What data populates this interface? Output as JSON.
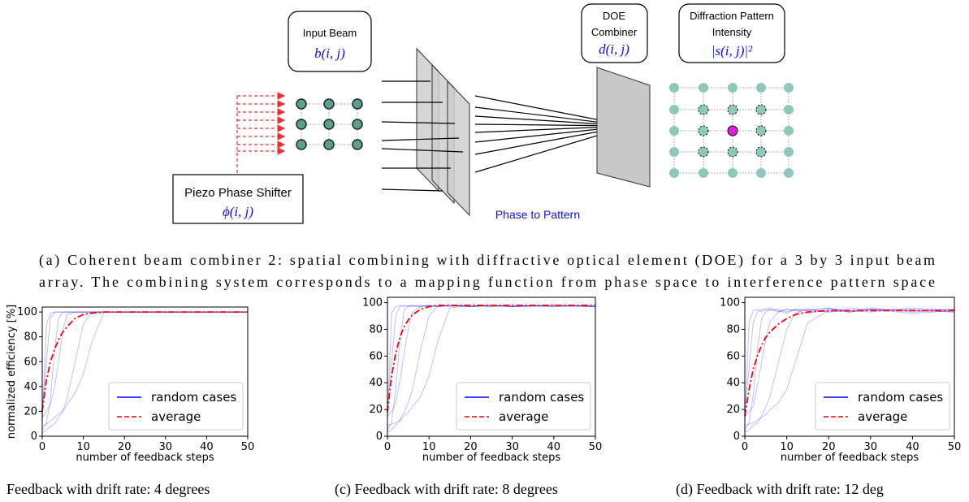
{
  "diagram": {
    "input_beam": {
      "label": "Input Beam",
      "formula": "b(i, j)"
    },
    "doe": {
      "label_1": "DOE",
      "label_2": "Combiner",
      "formula": "d(i, j)"
    },
    "pattern": {
      "label_1": "Diffraction Pattern",
      "label_2": "Intensity",
      "formula": "|s(i, j)|²"
    },
    "piezo": {
      "label": "Piezo Phase Shifter",
      "formula": "ϕ(i, j)"
    },
    "arrow_label": "Phase to Pattern",
    "caption_1": "(a) Coherent beam combiner 2: spatial combining with diffractive optical element (DOE) for a 3 by 3 input beam",
    "caption_2": "array. The combining system corresponds to a mapping function from phase space to interference pattern space"
  },
  "chart_data": [
    {
      "type": "line",
      "caption": "Feedback with drift rate: 4 degrees",
      "x_label": "number of feedback steps",
      "y_label": "normalized efficiency [%]",
      "x": [
        0,
        1,
        2,
        3,
        4,
        5,
        6,
        8,
        10,
        12,
        15,
        20,
        25,
        30,
        40,
        50
      ],
      "xlim": [
        0,
        50
      ],
      "xticks": [
        0,
        10,
        20,
        30,
        40,
        50
      ],
      "ylim": [
        0,
        104
      ],
      "yticks": [
        0,
        20,
        40,
        60,
        80,
        100
      ],
      "legend": "lower right",
      "series": [
        {
          "name": "random cases",
          "color": "#0000ff",
          "runs": [
            [
              10,
              90,
              99,
              100,
              100,
              100,
              100,
              100,
              100,
              100,
              100,
              100,
              100,
              100,
              100,
              100
            ],
            [
              20,
              60,
              95,
              100,
              100,
              100,
              100,
              100,
              100,
              100,
              100,
              100,
              100,
              100,
              100,
              100
            ],
            [
              5,
              10,
              30,
              70,
              95,
              100,
              100,
              100,
              100,
              100,
              100,
              100,
              100,
              100,
              100,
              100
            ],
            [
              15,
              20,
              25,
              40,
              60,
              85,
              98,
              100,
              100,
              100,
              100,
              100,
              100,
              100,
              100,
              100
            ],
            [
              3,
              5,
              8,
              10,
              15,
              20,
              30,
              60,
              90,
              100,
              100,
              100,
              100,
              100,
              100,
              100
            ],
            [
              8,
              10,
              12,
              15,
              18,
              20,
              25,
              35,
              50,
              75,
              100,
              100,
              100,
              100,
              100,
              100
            ]
          ]
        },
        {
          "name": "average",
          "color": "#ff0000",
          "values": [
            20,
            45,
            60,
            70,
            78,
            84,
            88,
            95,
            98,
            99,
            100,
            100,
            100,
            100,
            100,
            100
          ]
        }
      ]
    },
    {
      "type": "line",
      "caption": "(c) Feedback with drift rate: 8 degrees",
      "x_label": "number of feedback steps",
      "x": [
        0,
        1,
        2,
        3,
        4,
        5,
        6,
        8,
        10,
        12,
        15,
        20,
        25,
        30,
        40,
        50
      ],
      "xlim": [
        0,
        50
      ],
      "xticks": [
        0,
        10,
        20,
        30,
        40,
        50
      ],
      "ylim": [
        0,
        104
      ],
      "yticks": [
        0,
        20,
        40,
        60,
        80,
        100
      ],
      "legend": "lower right",
      "series": [
        {
          "name": "random cases",
          "color": "#0000ff",
          "runs": [
            [
              10,
              92,
              97,
              98,
              97,
              98,
              97,
              98,
              97,
              98,
              97,
              98,
              97,
              98,
              97,
              98
            ],
            [
              20,
              55,
              90,
              97,
              98,
              97,
              98,
              97,
              98,
              97,
              98,
              97,
              98,
              97,
              98,
              97
            ],
            [
              5,
              10,
              35,
              72,
              94,
              97,
              98,
              97,
              98,
              97,
              98,
              97,
              98,
              97,
              98,
              97
            ],
            [
              15,
              18,
              25,
              42,
              62,
              80,
              93,
              97,
              98,
              97,
              98,
              97,
              98,
              97,
              98,
              97
            ],
            [
              3,
              5,
              8,
              12,
              18,
              25,
              35,
              65,
              90,
              97,
              98,
              97,
              98,
              97,
              98,
              97
            ],
            [
              8,
              9,
              10,
              12,
              15,
              18,
              22,
              30,
              45,
              70,
              96,
              98,
              97,
              98,
              97,
              98
            ]
          ]
        },
        {
          "name": "average",
          "color": "#ff0000",
          "values": [
            18,
            45,
            62,
            74,
            82,
            87,
            91,
            95,
            97,
            98,
            98,
            98,
            98,
            98,
            98,
            98
          ]
        }
      ]
    },
    {
      "type": "line",
      "caption": "(d) Feedback with drift rate: 12 deg",
      "x_label": "number of feedback steps",
      "x": [
        0,
        1,
        2,
        3,
        4,
        5,
        6,
        8,
        10,
        12,
        15,
        20,
        25,
        30,
        40,
        50
      ],
      "xlim": [
        0,
        50
      ],
      "xticks": [
        0,
        10,
        20,
        30,
        40,
        50
      ],
      "ylim": [
        0,
        104
      ],
      "yticks": [
        0,
        20,
        40,
        60,
        80,
        100
      ],
      "legend": "lower right",
      "series": [
        {
          "name": "random cases",
          "color": "#0000ff",
          "runs": [
            [
              10,
              85,
              94,
              95,
              93,
              96,
              94,
              95,
              93,
              95,
              94,
              96,
              93,
              95,
              94,
              95
            ],
            [
              20,
              50,
              85,
              93,
              95,
              94,
              96,
              93,
              95,
              94,
              95,
              93,
              96,
              94,
              95,
              93
            ],
            [
              5,
              10,
              30,
              65,
              88,
              93,
              95,
              94,
              92,
              95,
              94,
              96,
              93,
              95,
              92,
              94
            ],
            [
              15,
              18,
              22,
              38,
              55,
              72,
              86,
              93,
              95,
              94,
              92,
              95,
              94,
              93,
              96,
              94
            ],
            [
              3,
              5,
              8,
              10,
              15,
              22,
              30,
              55,
              80,
              92,
              95,
              93,
              94,
              96,
              93,
              95
            ],
            [
              8,
              9,
              10,
              12,
              14,
              16,
              20,
              25,
              35,
              55,
              85,
              94,
              93,
              95,
              94,
              93
            ]
          ]
        },
        {
          "name": "average",
          "color": "#ff0000",
          "values": [
            15,
            35,
            50,
            60,
            68,
            74,
            78,
            84,
            88,
            91,
            93,
            94,
            94,
            94,
            94,
            94
          ]
        }
      ]
    }
  ]
}
